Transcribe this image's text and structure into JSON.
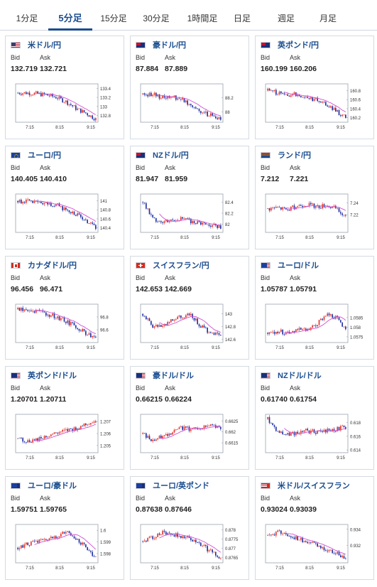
{
  "tabs": [
    {
      "label": "1分足",
      "active": false
    },
    {
      "label": "5分足",
      "active": true
    },
    {
      "label": "15分足",
      "active": false
    },
    {
      "label": "30分足",
      "active": false
    },
    {
      "label": "1時間足",
      "active": false
    },
    {
      "label": "日足",
      "active": false
    },
    {
      "label": "週足",
      "active": false
    },
    {
      "label": "月足",
      "active": false
    }
  ],
  "bid_label": "Bid",
  "ask_label": "Ask",
  "x_ticks": [
    "7:15",
    "8:15",
    "9:15"
  ],
  "colors": {
    "up": "#e8312a",
    "down": "#1e2fa0",
    "ma": "#d14fd1",
    "accent": "#1a4d8f"
  },
  "cards": [
    {
      "pair": "米ドル/円",
      "flag": "us",
      "bid": "132.719",
      "ask": "132.721",
      "chart_data": {
        "type": "candlestick",
        "y_ticks": [
          "133.4",
          "133.2",
          "133",
          "132.8"
        ],
        "yrange": [
          132.65,
          133.5
        ],
        "trend": [
          133.3,
          133.3,
          133.28,
          133.25,
          133.2,
          133.1,
          132.95,
          132.85,
          132.72
        ],
        "ma_from": 3
      }
    },
    {
      "pair": "豪ドル/円",
      "flag": "au",
      "bid": "87.884",
      "ask": "87.889",
      "chart_data": {
        "type": "candlestick",
        "y_ticks": [
          "88.2",
          "88"
        ],
        "yrange": [
          87.85,
          88.4
        ],
        "trend": [
          88.25,
          88.25,
          88.2,
          88.22,
          88.18,
          88.1,
          88.0,
          87.95,
          87.88
        ],
        "ma_from": 3
      }
    },
    {
      "pair": "英ポンド/円",
      "flag": "gb",
      "bid": "160.199",
      "ask": "160.206",
      "chart_data": {
        "type": "candlestick",
        "y_ticks": [
          "160.8",
          "160.6",
          "160.4",
          "160.2"
        ],
        "yrange": [
          160.1,
          160.95
        ],
        "trend": [
          160.8,
          160.75,
          160.7,
          160.72,
          160.65,
          160.6,
          160.5,
          160.35,
          160.2
        ],
        "ma_from": 3
      }
    },
    {
      "pair": "ユーロ/円",
      "flag": "eu",
      "bid": "140.405",
      "ask": "140.410",
      "chart_data": {
        "type": "candlestick",
        "y_ticks": [
          "141",
          "140.8",
          "140.6",
          "140.4"
        ],
        "yrange": [
          140.3,
          141.15
        ],
        "trend": [
          141.0,
          140.98,
          140.95,
          140.93,
          140.9,
          140.8,
          140.7,
          140.55,
          140.4
        ],
        "ma_from": 3
      }
    },
    {
      "pair": "NZドル/円",
      "flag": "nz",
      "bid": "81.947",
      "ask": "81.959",
      "chart_data": {
        "type": "candlestick",
        "y_ticks": [
          "82.4",
          "82.2",
          "82"
        ],
        "yrange": [
          81.85,
          82.55
        ],
        "trend": [
          82.4,
          82.1,
          82.05,
          82.08,
          82.1,
          82.05,
          82.02,
          81.98,
          81.95
        ],
        "ma_from": 3
      }
    },
    {
      "pair": "ランド/円",
      "flag": "za",
      "bid": "7.212",
      "ask": "7.221",
      "chart_data": {
        "type": "candlestick",
        "y_ticks": [
          "7.24",
          "7.22"
        ],
        "yrange": [
          7.19,
          7.255
        ],
        "trend": [
          7.23,
          7.232,
          7.228,
          7.235,
          7.238,
          7.233,
          7.236,
          7.23,
          7.215
        ],
        "ma_from": 3
      }
    },
    {
      "pair": "カナダドル/円",
      "flag": "ca",
      "bid": "96.456",
      "ask": "96.471",
      "chart_data": {
        "type": "candlestick",
        "y_ticks": [
          "96.8",
          "96.6"
        ],
        "yrange": [
          96.4,
          97.0
        ],
        "trend": [
          96.92,
          96.9,
          96.88,
          96.85,
          96.8,
          96.72,
          96.65,
          96.55,
          96.46
        ],
        "ma_from": 3
      }
    },
    {
      "pair": "スイスフラン/円",
      "flag": "ch",
      "bid": "142.653",
      "ask": "142.669",
      "chart_data": {
        "type": "candlestick",
        "y_ticks": [
          "143",
          "142.8",
          "142.6"
        ],
        "yrange": [
          142.55,
          143.15
        ],
        "trend": [
          143.0,
          142.8,
          142.82,
          142.9,
          142.95,
          142.98,
          142.8,
          142.7,
          142.65
        ],
        "ma_from": 3
      }
    },
    {
      "pair": "ユーロ/ドル",
      "flag": "eu-us",
      "bid": "1.05787",
      "ask": "1.05791",
      "chart_data": {
        "type": "candlestick",
        "y_ticks": [
          "1.0585",
          "1.058",
          "1.0575"
        ],
        "yrange": [
          1.0572,
          1.0592
        ],
        "trend": [
          1.0577,
          1.0578,
          1.0577,
          1.0579,
          1.0578,
          1.0581,
          1.0587,
          1.0585,
          1.0579
        ],
        "ma_from": 3
      }
    },
    {
      "pair": "英ポンド/ドル",
      "flag": "gb-us",
      "bid": "1.20701",
      "ask": "1.20711",
      "chart_data": {
        "type": "candlestick",
        "y_ticks": [
          "1.207",
          "1.206",
          "1.205"
        ],
        "yrange": [
          1.2044,
          1.2076
        ],
        "trend": [
          1.2056,
          1.2053,
          1.2055,
          1.2058,
          1.206,
          1.2062,
          1.2064,
          1.2068,
          1.207
        ],
        "ma_from": 3
      }
    },
    {
      "pair": "豪ドル/ドル",
      "flag": "au-us",
      "bid": "0.66215",
      "ask": "0.66224",
      "chart_data": {
        "type": "candlestick",
        "y_ticks": [
          "0.6625",
          "0.662",
          "0.6615"
        ],
        "yrange": [
          0.66105,
          0.6628
        ],
        "trend": [
          0.6619,
          0.6616,
          0.6618,
          0.662,
          0.6622,
          0.6621,
          0.6622,
          0.6623,
          0.6622
        ],
        "ma_from": 3
      }
    },
    {
      "pair": "NZドル/ドル",
      "flag": "nz-us",
      "bid": "0.61740",
      "ask": "0.61754",
      "chart_data": {
        "type": "candlestick",
        "y_ticks": [
          "0.618",
          "0.616",
          "0.614"
        ],
        "yrange": [
          0.6136,
          0.6192
        ],
        "trend": [
          0.6185,
          0.6168,
          0.6162,
          0.6165,
          0.6168,
          0.6166,
          0.6168,
          0.617,
          0.6174
        ],
        "ma_from": 3
      }
    },
    {
      "pair": "ユーロ/豪ドル",
      "flag": "eu-au",
      "bid": "1.59751",
      "ask": "1.59765",
      "chart_data": {
        "type": "candlestick",
        "y_ticks": [
          "1.6",
          "1.599",
          "1.598"
        ],
        "yrange": [
          1.5972,
          1.6005
        ],
        "trend": [
          1.5985,
          1.5988,
          1.599,
          1.5992,
          1.5995,
          1.5998,
          1.5993,
          1.5985,
          1.5976
        ],
        "ma_from": 3
      }
    },
    {
      "pair": "ユーロ/英ポンド",
      "flag": "eu-gb",
      "bid": "0.87638",
      "ask": "0.87646",
      "chart_data": {
        "type": "candlestick",
        "y_ticks": [
          "0.878",
          "0.8775",
          "0.877",
          "0.8765"
        ],
        "yrange": [
          0.8762,
          0.8783
        ],
        "trend": [
          0.8774,
          0.8776,
          0.8779,
          0.8778,
          0.8776,
          0.8775,
          0.8772,
          0.8768,
          0.8764
        ],
        "ma_from": 3
      }
    },
    {
      "pair": "米ドル/スイスフラン",
      "flag": "us-ch",
      "bid": "0.93024",
      "ask": "0.93039",
      "chart_data": {
        "type": "candlestick",
        "y_ticks": [
          "0.934",
          "0.932"
        ],
        "yrange": [
          0.9298,
          0.9346
        ],
        "trend": [
          0.9332,
          0.9336,
          0.9334,
          0.9328,
          0.9324,
          0.932,
          0.9315,
          0.931,
          0.9303
        ],
        "ma_from": 3
      }
    }
  ]
}
